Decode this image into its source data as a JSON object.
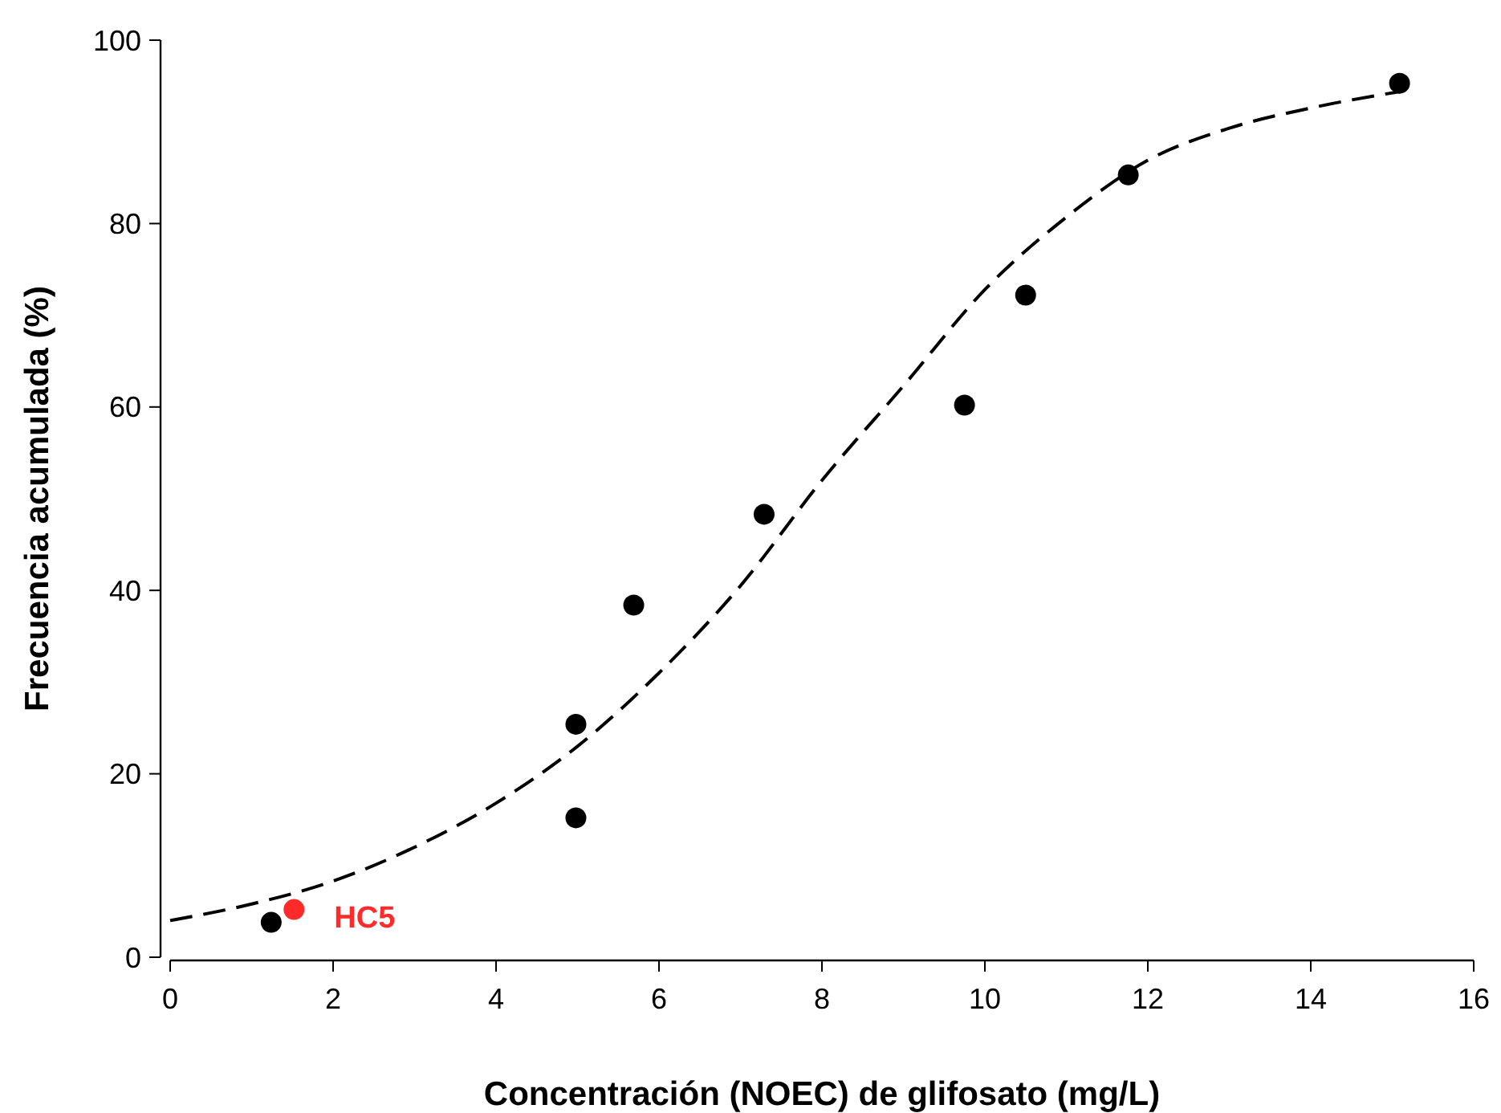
{
  "chart_data": {
    "type": "scatter",
    "xlabel": "Concentración (NOEC) de glifosato (mg/L)",
    "ylabel": "Frecuencia acumulada (%)",
    "xlim": [
      0,
      16
    ],
    "xticks": [
      0,
      2,
      4,
      6,
      8,
      10,
      12,
      14,
      16
    ],
    "ylim": [
      0,
      100
    ],
    "yticks": [
      0,
      20,
      40,
      60,
      80,
      100
    ],
    "grid": false,
    "marker": "circle",
    "series": [
      {
        "type": "line",
        "color": "#000000",
        "line_style": "dashed",
        "marker": "none",
        "x": [
          0,
          1,
          2,
          3,
          4,
          5,
          6,
          7,
          8,
          9,
          10,
          11,
          12,
          13,
          14,
          15.1
        ],
        "values": [
          4,
          5.8,
          8.3,
          12,
          16.8,
          23,
          31,
          40.5,
          52,
          62.3,
          72.8,
          80.7,
          86.9,
          90.4,
          92.6,
          94.4
        ]
      },
      {
        "color": "#000000",
        "x": [
          1.24,
          4.98,
          4.98,
          5.69,
          7.29,
          9.75,
          10.5,
          11.76,
          15.09
        ],
        "values": [
          3.8,
          25.4,
          15.2,
          38.4,
          48.3,
          60.2,
          72.2,
          85.3,
          95.3
        ]
      },
      {
        "color": "#ff2a2a",
        "x": [
          1.52
        ],
        "values": [
          5.2
        ]
      }
    ],
    "annotations": [
      {
        "text": "HC5",
        "x": 1.52,
        "y": 5.2
      }
    ]
  }
}
